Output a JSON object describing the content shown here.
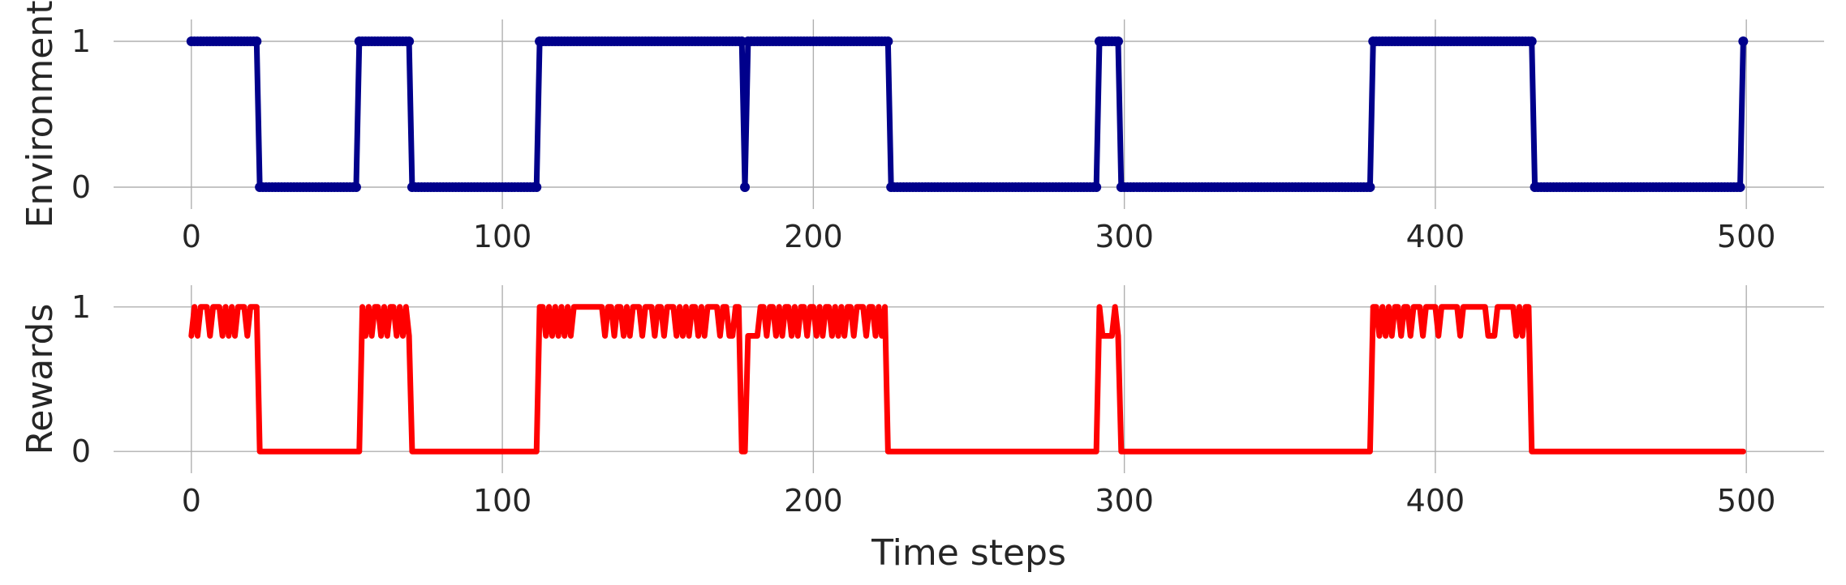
{
  "chart_data": [
    {
      "type": "line",
      "xlabel": "",
      "ylabel": "Environment",
      "xlim": [
        -25,
        525
      ],
      "ylim": [
        -0.15,
        1.15
      ],
      "x_ticks": [
        0,
        100,
        200,
        300,
        400,
        500
      ],
      "y_ticks": [
        0,
        1
      ],
      "grid": true,
      "markers": true,
      "color": "#00008b",
      "segments": [
        {
          "start": 0,
          "end": 21,
          "value": 1
        },
        {
          "start": 22,
          "end": 53,
          "value": 0
        },
        {
          "start": 54,
          "end": 70,
          "value": 1
        },
        {
          "start": 71,
          "end": 111,
          "value": 0
        },
        {
          "start": 112,
          "end": 177,
          "value": 1
        },
        {
          "start": 178,
          "end": 178,
          "value": 0
        },
        {
          "start": 179,
          "end": 224,
          "value": 1
        },
        {
          "start": 225,
          "end": 291,
          "value": 0
        },
        {
          "start": 292,
          "end": 298,
          "value": 1
        },
        {
          "start": 299,
          "end": 379,
          "value": 0
        },
        {
          "start": 380,
          "end": 431,
          "value": 1
        },
        {
          "start": 432,
          "end": 498,
          "value": 0
        },
        {
          "start": 499,
          "end": 499,
          "value": 1
        }
      ]
    },
    {
      "type": "line",
      "xlabel": "Time steps",
      "ylabel": "Rewards",
      "xlim": [
        -25,
        525
      ],
      "ylim": [
        -0.15,
        1.15
      ],
      "x_ticks": [
        0,
        100,
        200,
        300,
        400,
        500
      ],
      "y_ticks": [
        0,
        1
      ],
      "grid": true,
      "markers": false,
      "color": "#ff0000",
      "points": [
        [
          0,
          0.8
        ],
        [
          1,
          1
        ],
        [
          2,
          0.8
        ],
        [
          3,
          1
        ],
        [
          5,
          1
        ],
        [
          6,
          0.8
        ],
        [
          7,
          1
        ],
        [
          8,
          1
        ],
        [
          9,
          1
        ],
        [
          10,
          0.8
        ],
        [
          11,
          1
        ],
        [
          12,
          0.8
        ],
        [
          13,
          1
        ],
        [
          14,
          0.8
        ],
        [
          15,
          1
        ],
        [
          16,
          1
        ],
        [
          17,
          1
        ],
        [
          18,
          0.8
        ],
        [
          19,
          1
        ],
        [
          20,
          1
        ],
        [
          21,
          1
        ],
        [
          22,
          0
        ],
        [
          54,
          0
        ],
        [
          55,
          1
        ],
        [
          56,
          0.8
        ],
        [
          57,
          1
        ],
        [
          58,
          0.8
        ],
        [
          59,
          1
        ],
        [
          60,
          1
        ],
        [
          61,
          0.8
        ],
        [
          62,
          1
        ],
        [
          63,
          0.8
        ],
        [
          64,
          1
        ],
        [
          65,
          1
        ],
        [
          66,
          0.8
        ],
        [
          67,
          1
        ],
        [
          68,
          0.8
        ],
        [
          69,
          1
        ],
        [
          70,
          0.8
        ],
        [
          71,
          0
        ],
        [
          111,
          0
        ],
        [
          112,
          1
        ],
        [
          113,
          1
        ],
        [
          114,
          0.8
        ],
        [
          115,
          1
        ],
        [
          116,
          0.8
        ],
        [
          117,
          1
        ],
        [
          118,
          0.8
        ],
        [
          119,
          1
        ],
        [
          120,
          0.8
        ],
        [
          121,
          1
        ],
        [
          122,
          0.8
        ],
        [
          123,
          1
        ],
        [
          132,
          1
        ],
        [
          133,
          0.8
        ],
        [
          134,
          1
        ],
        [
          135,
          1
        ],
        [
          136,
          0.8
        ],
        [
          137,
          1
        ],
        [
          138,
          1
        ],
        [
          139,
          0.8
        ],
        [
          140,
          1
        ],
        [
          141,
          0.8
        ],
        [
          142,
          1
        ],
        [
          144,
          1
        ],
        [
          145,
          0.8
        ],
        [
          146,
          1
        ],
        [
          148,
          1
        ],
        [
          149,
          0.8
        ],
        [
          150,
          1
        ],
        [
          151,
          1
        ],
        [
          152,
          0.8
        ],
        [
          153,
          1
        ],
        [
          155,
          1
        ],
        [
          156,
          0.8
        ],
        [
          157,
          1
        ],
        [
          158,
          0.8
        ],
        [
          159,
          1
        ],
        [
          160,
          0.8
        ],
        [
          161,
          1
        ],
        [
          162,
          1
        ],
        [
          163,
          0.8
        ],
        [
          164,
          1
        ],
        [
          165,
          0.8
        ],
        [
          166,
          1
        ],
        [
          169,
          1
        ],
        [
          170,
          0.8
        ],
        [
          171,
          1
        ],
        [
          172,
          1
        ],
        [
          173,
          0.8
        ],
        [
          174,
          0.8
        ],
        [
          175,
          1
        ],
        [
          176,
          1
        ],
        [
          177,
          0
        ],
        [
          178,
          0
        ],
        [
          179,
          0.8
        ],
        [
          181,
          0.8
        ],
        [
          182,
          0.8
        ],
        [
          183,
          1
        ],
        [
          184,
          1
        ],
        [
          185,
          0.8
        ],
        [
          186,
          1
        ],
        [
          187,
          1
        ],
        [
          188,
          0.8
        ],
        [
          189,
          1
        ],
        [
          190,
          0.8
        ],
        [
          191,
          1
        ],
        [
          192,
          1
        ],
        [
          193,
          0.8
        ],
        [
          194,
          1
        ],
        [
          195,
          0.8
        ],
        [
          196,
          1
        ],
        [
          197,
          1
        ],
        [
          198,
          0.8
        ],
        [
          199,
          1
        ],
        [
          200,
          1
        ],
        [
          201,
          0.8
        ],
        [
          202,
          1
        ],
        [
          203,
          0.8
        ],
        [
          204,
          1
        ],
        [
          205,
          1
        ],
        [
          206,
          0.8
        ],
        [
          207,
          1
        ],
        [
          208,
          0.8
        ],
        [
          209,
          1
        ],
        [
          210,
          0.8
        ],
        [
          211,
          1
        ],
        [
          212,
          1
        ],
        [
          213,
          0.8
        ],
        [
          214,
          1
        ],
        [
          215,
          1
        ],
        [
          216,
          1
        ],
        [
          217,
          0.8
        ],
        [
          218,
          1
        ],
        [
          219,
          1
        ],
        [
          220,
          0.8
        ],
        [
          221,
          1
        ],
        [
          222,
          0.8
        ],
        [
          223,
          1
        ],
        [
          224,
          0
        ],
        [
          291,
          0
        ],
        [
          292,
          1
        ],
        [
          293,
          0.8
        ],
        [
          294,
          0.8
        ],
        [
          296,
          0.8
        ],
        [
          297,
          1
        ],
        [
          298,
          0.8
        ],
        [
          299,
          0
        ],
        [
          379,
          0
        ],
        [
          380,
          1
        ],
        [
          381,
          1
        ],
        [
          382,
          0.8
        ],
        [
          383,
          1
        ],
        [
          384,
          0.8
        ],
        [
          385,
          1
        ],
        [
          386,
          0.8
        ],
        [
          387,
          1
        ],
        [
          388,
          1
        ],
        [
          389,
          0.8
        ],
        [
          390,
          1
        ],
        [
          391,
          1
        ],
        [
          392,
          0.8
        ],
        [
          393,
          1
        ],
        [
          394,
          1
        ],
        [
          395,
          1
        ],
        [
          396,
          0.8
        ],
        [
          397,
          1
        ],
        [
          398,
          1
        ],
        [
          399,
          1
        ],
        [
          400,
          1
        ],
        [
          401,
          0.8
        ],
        [
          402,
          1
        ],
        [
          403,
          1
        ],
        [
          404,
          1
        ],
        [
          405,
          1
        ],
        [
          406,
          1
        ],
        [
          407,
          1
        ],
        [
          408,
          0.8
        ],
        [
          409,
          1
        ],
        [
          410,
          1
        ],
        [
          411,
          1
        ],
        [
          412,
          1
        ],
        [
          413,
          1
        ],
        [
          414,
          1
        ],
        [
          415,
          1
        ],
        [
          416,
          1
        ],
        [
          417,
          0.8
        ],
        [
          418,
          0.8
        ],
        [
          419,
          0.8
        ],
        [
          420,
          1
        ],
        [
          421,
          1
        ],
        [
          422,
          1
        ],
        [
          423,
          1
        ],
        [
          424,
          1
        ],
        [
          425,
          1
        ],
        [
          426,
          0.8
        ],
        [
          427,
          1
        ],
        [
          428,
          0.8
        ],
        [
          429,
          1
        ],
        [
          430,
          1
        ],
        [
          431,
          0
        ],
        [
          499,
          0
        ]
      ]
    }
  ]
}
